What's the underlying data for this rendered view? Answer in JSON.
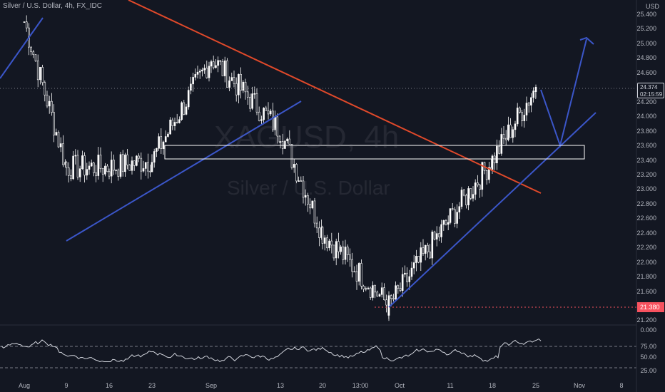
{
  "symbol_label": "Silver / U.S. Dollar, 4h, FX_IDC",
  "currency": "USD",
  "watermark": {
    "ticker": "XAGUSD, 4h",
    "name": "Silver / U.S. Dollar"
  },
  "price_axis": {
    "ticks": [
      "25.400",
      "25.200",
      "25.000",
      "24.800",
      "24.600",
      "24.400",
      "24.200",
      "24.000",
      "23.800",
      "23.600",
      "23.400",
      "23.200",
      "23.000",
      "22.800",
      "22.600",
      "22.400",
      "22.200",
      "22.000",
      "21.800",
      "21.600",
      "21.400",
      "21.200"
    ]
  },
  "current_price": {
    "value": "24.374",
    "countdown": "02:15:59"
  },
  "low_marker": {
    "value": "21.380"
  },
  "rsi_axis": {
    "ticks": [
      "0.000",
      "75.00",
      "50.00",
      "25.00"
    ]
  },
  "time_axis": {
    "ticks": [
      "Aug",
      "9",
      "16",
      "23",
      "Sep",
      "13",
      "20",
      "13:00",
      "Oct",
      "11",
      "18",
      "25",
      "Nov",
      "8"
    ]
  },
  "colors": {
    "background": "#131722",
    "candles": "#ffffff",
    "trendline_blue": "#3b56c9",
    "trendline_red": "#e0492a",
    "low_line": "#f7525f",
    "rsi": "#d1d4dc"
  },
  "chart_data": {
    "type": "line",
    "series": [
      {
        "x": [
          "Aug",
          "9",
          "16",
          "23",
          "Sep",
          "13",
          "20",
          "Oct",
          "11",
          "18",
          "25"
        ],
        "values": [
          25.3,
          23.3,
          23.3,
          23.4,
          24.8,
          23.8,
          22.4,
          21.4,
          22.6,
          23.4,
          24.4
        ]
      }
    ],
    "ylim": [
      21.1,
      25.5
    ],
    "grid": false
  }
}
